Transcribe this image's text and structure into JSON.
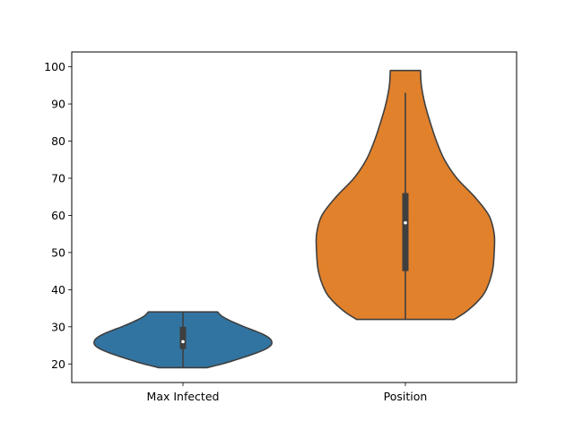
{
  "chart_data": {
    "type": "violin",
    "categories": [
      "Max Infected",
      "Position"
    ],
    "ylim": [
      15,
      104
    ],
    "yticks": [
      20,
      30,
      40,
      50,
      60,
      70,
      80,
      90,
      100
    ],
    "grid": false,
    "series": [
      {
        "color": "#3274a1",
        "min": 19,
        "q1": 24,
        "median": 26,
        "q3": 30,
        "max": 34,
        "whisker_low": 19,
        "whisker_high": 34,
        "density": [
          [
            19,
            0.27
          ],
          [
            20,
            0.44
          ],
          [
            21,
            0.58
          ],
          [
            22,
            0.71
          ],
          [
            23,
            0.83
          ],
          [
            24,
            0.93
          ],
          [
            25,
            0.99
          ],
          [
            26,
            1.0
          ],
          [
            27,
            0.97
          ],
          [
            28,
            0.9
          ],
          [
            29,
            0.8
          ],
          [
            30,
            0.69
          ],
          [
            31,
            0.59
          ],
          [
            32,
            0.5
          ],
          [
            33,
            0.43
          ],
          [
            34,
            0.39
          ]
        ]
      },
      {
        "color": "#e1812c",
        "min": 32,
        "q1": 45,
        "median": 58,
        "q3": 66,
        "max": 99,
        "whisker_low": 32,
        "whisker_high": 93,
        "density": [
          [
            32,
            0.55
          ],
          [
            34,
            0.68
          ],
          [
            37,
            0.82
          ],
          [
            40,
            0.91
          ],
          [
            45,
            0.98
          ],
          [
            50,
            1.0
          ],
          [
            55,
            1.0
          ],
          [
            60,
            0.94
          ],
          [
            65,
            0.78
          ],
          [
            70,
            0.58
          ],
          [
            75,
            0.44
          ],
          [
            80,
            0.35
          ],
          [
            85,
            0.28
          ],
          [
            90,
            0.22
          ],
          [
            95,
            0.18
          ],
          [
            99,
            0.17
          ]
        ]
      }
    ]
  }
}
